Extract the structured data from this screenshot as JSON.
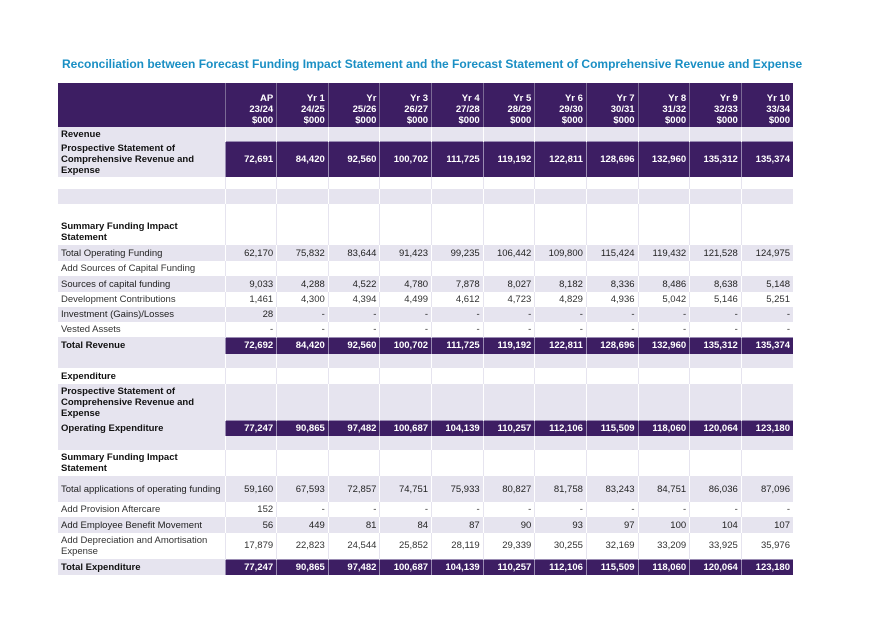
{
  "title": "Reconciliation between Forecast Funding Impact Statement and the Forecast Statement of Comprehensive Revenue and Expense",
  "columns": [
    {
      "l1": "AP",
      "l2": "23/24",
      "l3": "$000"
    },
    {
      "l1": "Yr 1",
      "l2": "24/25",
      "l3": "$000"
    },
    {
      "l1": "Yr",
      "l2": "25/26",
      "l3": "$000"
    },
    {
      "l1": "Yr 3",
      "l2": "26/27",
      "l3": "$000"
    },
    {
      "l1": "Yr 4",
      "l2": "27/28",
      "l3": "$000"
    },
    {
      "l1": "Yr 5",
      "l2": "28/29",
      "l3": "$000"
    },
    {
      "l1": "Yr 6",
      "l2": "29/30",
      "l3": "$000"
    },
    {
      "l1": "Yr 7",
      "l2": "30/31",
      "l3": "$000"
    },
    {
      "l1": "Yr 8",
      "l2": "31/32",
      "l3": "$000"
    },
    {
      "l1": "Yr 9",
      "l2": "32/33",
      "l3": "$000"
    },
    {
      "l1": "Yr 10",
      "l2": "33/34",
      "l3": "$000"
    }
  ],
  "rows": [
    {
      "style": "band section",
      "label": "Revenue",
      "values": [
        "",
        "",
        "",
        "",
        "",
        "",
        "",
        "",
        "",
        "",
        ""
      ]
    },
    {
      "style": "purple section",
      "label": "Prospective Statement of Comprehensive Revenue and Expense",
      "values": [
        "72,691",
        "84,420",
        "92,560",
        "100,702",
        "111,725",
        "119,192",
        "122,811",
        "128,696",
        "132,960",
        "135,312",
        "135,374"
      ]
    },
    {
      "style": "white",
      "label": "",
      "values": [
        "",
        "",
        "",
        "",
        "",
        "",
        "",
        "",
        "",
        "",
        ""
      ]
    },
    {
      "style": "band",
      "label": "",
      "values": [
        "",
        "",
        "",
        "",
        "",
        "",
        "",
        "",
        "",
        "",
        ""
      ]
    },
    {
      "style": "white",
      "label": "",
      "values": [
        "",
        "",
        "",
        "",
        "",
        "",
        "",
        "",
        "",
        "",
        ""
      ]
    },
    {
      "style": "white section",
      "label": "Summary Funding Impact Statement",
      "values": [
        "",
        "",
        "",
        "",
        "",
        "",
        "",
        "",
        "",
        "",
        ""
      ]
    },
    {
      "style": "band",
      "label": "Total Operating Funding",
      "values": [
        "62,170",
        "75,832",
        "83,644",
        "91,423",
        "99,235",
        "106,442",
        "109,800",
        "115,424",
        "119,432",
        "121,528",
        "124,975"
      ]
    },
    {
      "style": "white",
      "label": "Add Sources of Capital Funding",
      "values": [
        "",
        "",
        "",
        "",
        "",
        "",
        "",
        "",
        "",
        "",
        ""
      ]
    },
    {
      "style": "band",
      "label": "Sources of capital funding",
      "values": [
        "9,033",
        "4,288",
        "4,522",
        "4,780",
        "7,878",
        "8,027",
        "8,182",
        "8,336",
        "8,486",
        "8,638",
        "5,148"
      ]
    },
    {
      "style": "white",
      "label": "Development Contributions",
      "values": [
        "1,461",
        "4,300",
        "4,394",
        "4,499",
        "4,612",
        "4,723",
        "4,829",
        "4,936",
        "5,042",
        "5,146",
        "5,251"
      ]
    },
    {
      "style": "band",
      "label": "Investment (Gains)/Losses",
      "values": [
        "28",
        "-",
        "-",
        "-",
        "-",
        "-",
        "-",
        "-",
        "-",
        "-",
        "-"
      ]
    },
    {
      "style": "white",
      "label": "Vested Assets",
      "values": [
        "-",
        "-",
        "-",
        "-",
        "-",
        "-",
        "-",
        "-",
        "-",
        "-",
        "-"
      ]
    },
    {
      "style": "purple section",
      "label": "Total Revenue",
      "values": [
        "72,692",
        "84,420",
        "92,560",
        "100,702",
        "111,725",
        "119,192",
        "122,811",
        "128,696",
        "132,960",
        "135,312",
        "135,374"
      ]
    },
    {
      "style": "band",
      "label": "",
      "values": [
        "",
        "",
        "",
        "",
        "",
        "",
        "",
        "",
        "",
        "",
        ""
      ]
    },
    {
      "style": "white section",
      "label": "Expenditure",
      "values": [
        "",
        "",
        "",
        "",
        "",
        "",
        "",
        "",
        "",
        "",
        ""
      ]
    },
    {
      "style": "band section",
      "label": "Prospective Statement of Comprehensive Revenue and Expense",
      "values": [
        "",
        "",
        "",
        "",
        "",
        "",
        "",
        "",
        "",
        "",
        ""
      ]
    },
    {
      "style": "purple section",
      "label": "Operating Expenditure",
      "values": [
        "77,247",
        "90,865",
        "97,482",
        "100,687",
        "104,139",
        "110,257",
        "112,106",
        "115,509",
        "118,060",
        "120,064",
        "123,180"
      ]
    },
    {
      "style": "band",
      "label": "",
      "values": [
        "",
        "",
        "",
        "",
        "",
        "",
        "",
        "",
        "",
        "",
        ""
      ]
    },
    {
      "style": "white section",
      "label": "Summary Funding Impact Statement",
      "values": [
        "",
        "",
        "",
        "",
        "",
        "",
        "",
        "",
        "",
        "",
        ""
      ]
    },
    {
      "style": "band",
      "label": "Total applications of operating funding",
      "values": [
        "59,160",
        "67,593",
        "72,857",
        "74,751",
        "75,933",
        "80,827",
        "81,758",
        "83,243",
        "84,751",
        "86,036",
        "87,096"
      ]
    },
    {
      "style": "white",
      "label": "Add Provision Aftercare",
      "values": [
        "152",
        "-",
        "-",
        "-",
        "-",
        "-",
        "-",
        "-",
        "-",
        "-",
        "-"
      ]
    },
    {
      "style": "band",
      "label": "Add Employee Benefit Movement",
      "values": [
        "56",
        "449",
        "81",
        "84",
        "87",
        "90",
        "93",
        "97",
        "100",
        "104",
        "107"
      ]
    },
    {
      "style": "white",
      "label": "Add Depreciation and Amortisation Expense",
      "values": [
        "17,879",
        "22,823",
        "24,544",
        "25,852",
        "28,119",
        "29,339",
        "30,255",
        "32,169",
        "33,209",
        "33,925",
        "35,976"
      ]
    },
    {
      "style": "purple section",
      "label": "Total Expenditure",
      "values": [
        "77,247",
        "90,865",
        "97,482",
        "100,687",
        "104,139",
        "110,257",
        "112,106",
        "115,509",
        "118,060",
        "120,064",
        "123,180"
      ]
    }
  ]
}
